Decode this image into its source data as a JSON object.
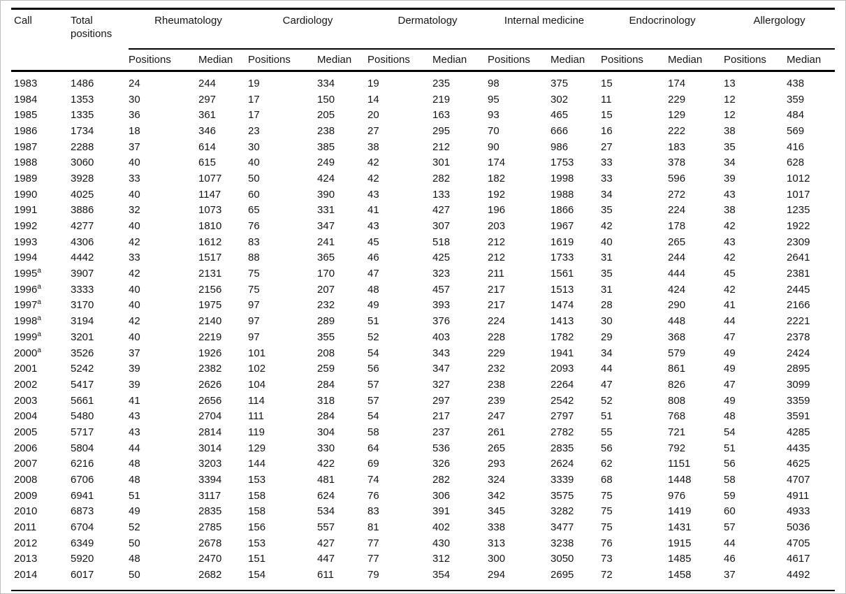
{
  "table": {
    "columns": {
      "call": "Call",
      "total": "Total positions",
      "sub_positions": "Positions",
      "sub_median": "Median"
    },
    "groups": [
      {
        "label": "Rheumatology"
      },
      {
        "label": "Cardiology"
      },
      {
        "label": "Dermatology"
      },
      {
        "label": "Internal medicine"
      },
      {
        "label": "Endocrinology"
      },
      {
        "label": "Allergology"
      }
    ],
    "footnote_marker": "a",
    "rows": [
      {
        "call": "1983",
        "note": false,
        "total": 1486,
        "values": [
          24,
          244,
          19,
          334,
          19,
          235,
          98,
          375,
          15,
          174,
          13,
          438
        ]
      },
      {
        "call": "1984",
        "note": false,
        "total": 1353,
        "values": [
          30,
          297,
          17,
          150,
          14,
          219,
          95,
          302,
          11,
          229,
          12,
          359
        ]
      },
      {
        "call": "1985",
        "note": false,
        "total": 1335,
        "values": [
          36,
          361,
          17,
          205,
          20,
          163,
          93,
          465,
          15,
          129,
          12,
          484
        ]
      },
      {
        "call": "1986",
        "note": false,
        "total": 1734,
        "values": [
          18,
          346,
          23,
          238,
          27,
          295,
          70,
          666,
          16,
          222,
          38,
          569
        ]
      },
      {
        "call": "1987",
        "note": false,
        "total": 2288,
        "values": [
          37,
          614,
          30,
          385,
          38,
          212,
          90,
          986,
          27,
          183,
          35,
          416
        ]
      },
      {
        "call": "1988",
        "note": false,
        "total": 3060,
        "values": [
          40,
          615,
          40,
          249,
          42,
          301,
          174,
          1753,
          33,
          378,
          34,
          628
        ]
      },
      {
        "call": "1989",
        "note": false,
        "total": 3928,
        "values": [
          33,
          1077,
          50,
          424,
          42,
          282,
          182,
          1998,
          33,
          596,
          39,
          1012
        ]
      },
      {
        "call": "1990",
        "note": false,
        "total": 4025,
        "values": [
          40,
          1147,
          60,
          390,
          43,
          133,
          192,
          1988,
          34,
          272,
          43,
          1017
        ]
      },
      {
        "call": "1991",
        "note": false,
        "total": 3886,
        "values": [
          32,
          1073,
          65,
          331,
          41,
          427,
          196,
          1866,
          35,
          224,
          38,
          1235
        ]
      },
      {
        "call": "1992",
        "note": false,
        "total": 4277,
        "values": [
          40,
          1810,
          76,
          347,
          43,
          307,
          203,
          1967,
          42,
          178,
          42,
          1922
        ]
      },
      {
        "call": "1993",
        "note": false,
        "total": 4306,
        "values": [
          42,
          1612,
          83,
          241,
          45,
          518,
          212,
          1619,
          40,
          265,
          43,
          2309
        ]
      },
      {
        "call": "1994",
        "note": false,
        "total": 4442,
        "values": [
          33,
          1517,
          88,
          365,
          46,
          425,
          212,
          1733,
          31,
          244,
          42,
          2641
        ]
      },
      {
        "call": "1995",
        "note": true,
        "total": 3907,
        "values": [
          42,
          2131,
          75,
          170,
          47,
          323,
          211,
          1561,
          35,
          444,
          45,
          2381
        ]
      },
      {
        "call": "1996",
        "note": true,
        "total": 3333,
        "values": [
          40,
          2156,
          75,
          207,
          48,
          457,
          217,
          1513,
          31,
          424,
          42,
          2445
        ]
      },
      {
        "call": "1997",
        "note": true,
        "total": 3170,
        "values": [
          40,
          1975,
          97,
          232,
          49,
          393,
          217,
          1474,
          28,
          290,
          41,
          2166
        ]
      },
      {
        "call": "1998",
        "note": true,
        "total": 3194,
        "values": [
          42,
          2140,
          97,
          289,
          51,
          376,
          224,
          1413,
          30,
          448,
          44,
          2221
        ]
      },
      {
        "call": "1999",
        "note": true,
        "total": 3201,
        "values": [
          40,
          2219,
          97,
          355,
          52,
          403,
          228,
          1782,
          29,
          368,
          47,
          2378
        ]
      },
      {
        "call": "2000",
        "note": true,
        "total": 3526,
        "values": [
          37,
          1926,
          101,
          208,
          54,
          343,
          229,
          1941,
          34,
          579,
          49,
          2424
        ]
      },
      {
        "call": "2001",
        "note": false,
        "total": 5242,
        "values": [
          39,
          2382,
          102,
          259,
          56,
          347,
          232,
          2093,
          44,
          861,
          49,
          2895
        ]
      },
      {
        "call": "2002",
        "note": false,
        "total": 5417,
        "values": [
          39,
          2626,
          104,
          284,
          57,
          327,
          238,
          2264,
          47,
          826,
          47,
          3099
        ]
      },
      {
        "call": "2003",
        "note": false,
        "total": 5661,
        "values": [
          41,
          2656,
          114,
          318,
          57,
          297,
          239,
          2542,
          52,
          808,
          49,
          3359
        ]
      },
      {
        "call": "2004",
        "note": false,
        "total": 5480,
        "values": [
          43,
          2704,
          111,
          284,
          54,
          217,
          247,
          2797,
          51,
          768,
          48,
          3591
        ]
      },
      {
        "call": "2005",
        "note": false,
        "total": 5717,
        "values": [
          43,
          2814,
          119,
          304,
          58,
          237,
          261,
          2782,
          55,
          721,
          54,
          4285
        ]
      },
      {
        "call": "2006",
        "note": false,
        "total": 5804,
        "values": [
          44,
          3014,
          129,
          330,
          64,
          536,
          265,
          2835,
          56,
          792,
          51,
          4435
        ]
      },
      {
        "call": "2007",
        "note": false,
        "total": 6216,
        "values": [
          48,
          3203,
          144,
          422,
          69,
          326,
          293,
          2624,
          62,
          1151,
          56,
          4625
        ]
      },
      {
        "call": "2008",
        "note": false,
        "total": 6706,
        "values": [
          48,
          3394,
          153,
          481,
          74,
          282,
          324,
          3339,
          68,
          1448,
          58,
          4707
        ]
      },
      {
        "call": "2009",
        "note": false,
        "total": 6941,
        "values": [
          51,
          3117,
          158,
          624,
          76,
          306,
          342,
          3575,
          75,
          976,
          59,
          4911
        ]
      },
      {
        "call": "2010",
        "note": false,
        "total": 6873,
        "values": [
          49,
          2835,
          158,
          534,
          83,
          391,
          345,
          3282,
          75,
          1419,
          60,
          4933
        ]
      },
      {
        "call": "2011",
        "note": false,
        "total": 6704,
        "values": [
          52,
          2785,
          156,
          557,
          81,
          402,
          338,
          3477,
          75,
          1431,
          57,
          5036
        ]
      },
      {
        "call": "2012",
        "note": false,
        "total": 6349,
        "values": [
          50,
          2678,
          153,
          427,
          77,
          430,
          313,
          3238,
          76,
          1915,
          44,
          4705
        ]
      },
      {
        "call": "2013",
        "note": false,
        "total": 5920,
        "values": [
          48,
          2470,
          151,
          447,
          77,
          312,
          300,
          3050,
          73,
          1485,
          46,
          4617
        ]
      },
      {
        "call": "2014",
        "note": false,
        "total": 6017,
        "values": [
          50,
          2682,
          154,
          611,
          79,
          354,
          294,
          2695,
          72,
          1458,
          37,
          4492
        ]
      }
    ]
  }
}
